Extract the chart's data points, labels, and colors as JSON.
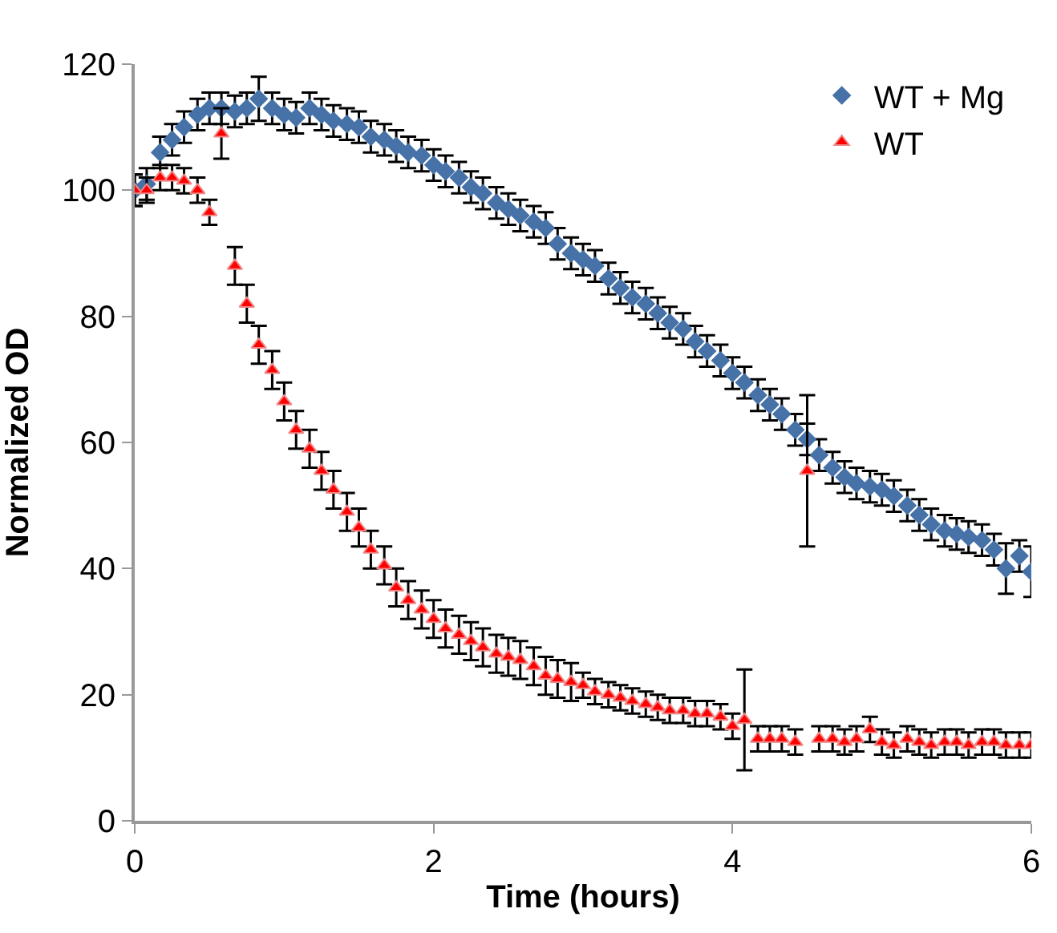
{
  "chart_data": {
    "type": "scatter",
    "xlabel": "Time (hours)",
    "ylabel": "Normalized OD",
    "x": [
      0,
      0.08,
      0.17,
      0.25,
      0.33,
      0.42,
      0.5,
      0.58,
      0.67,
      0.75,
      0.83,
      0.92,
      1,
      1.08,
      1.17,
      1.25,
      1.33,
      1.42,
      1.5,
      1.58,
      1.67,
      1.75,
      1.83,
      1.92,
      2,
      2.08,
      2.17,
      2.25,
      2.33,
      2.42,
      2.5,
      2.58,
      2.67,
      2.75,
      2.83,
      2.92,
      3,
      3.08,
      3.17,
      3.25,
      3.33,
      3.42,
      3.5,
      3.58,
      3.67,
      3.75,
      3.83,
      3.92,
      4,
      4.08,
      4.17,
      4.25,
      4.33,
      4.42,
      4.5,
      4.58,
      4.67,
      4.75,
      4.83,
      4.92,
      5,
      5.08,
      5.17,
      5.25,
      5.33,
      5.42,
      5.5,
      5.58,
      5.67,
      5.75,
      5.83,
      5.92,
      6
    ],
    "series": [
      {
        "name": "WT + Mg",
        "color": "#4672a8",
        "marker": "diamond",
        "values": [
          100,
          101,
          106,
          108,
          110,
          112,
          113,
          113,
          112.5,
          113,
          114.5,
          113,
          112,
          111.5,
          113,
          112,
          111,
          110.5,
          110,
          108.5,
          108,
          107,
          106,
          105.5,
          104,
          103,
          102,
          100.5,
          99.5,
          98,
          97,
          96,
          95,
          94,
          91.5,
          90,
          89,
          88,
          86,
          84.5,
          83,
          82,
          80.5,
          79,
          78,
          76,
          74.5,
          73,
          71,
          69.5,
          67.5,
          66,
          64.5,
          62,
          60.5,
          58,
          56,
          54.5,
          53.5,
          53,
          52.5,
          51.5,
          50,
          48.5,
          47,
          46,
          45.5,
          45,
          44.5,
          43,
          40,
          42,
          39.5
        ],
        "errors": [
          2.5,
          2.5,
          2.5,
          2.5,
          2.5,
          2.5,
          2.5,
          2.5,
          2.5,
          2.5,
          3.5,
          2.5,
          2.5,
          2.5,
          2.5,
          2.5,
          2.5,
          2.5,
          2.5,
          2.5,
          2.5,
          2.5,
          2.5,
          2.5,
          2.5,
          2.5,
          2.5,
          2.5,
          2.5,
          2.5,
          2.5,
          2.5,
          2.5,
          2.5,
          2.5,
          2.5,
          2.5,
          2.5,
          2.5,
          2.5,
          2.5,
          2.5,
          2.5,
          2.5,
          2.5,
          2.5,
          2.5,
          2.5,
          2.5,
          2.5,
          2.5,
          2.5,
          2.5,
          2.5,
          2.5,
          2.5,
          2.5,
          2.5,
          2.5,
          2.5,
          2.5,
          2.5,
          2.5,
          2.5,
          2.5,
          2.5,
          2.5,
          2.5,
          2.5,
          2.5,
          4,
          2.5,
          4
        ]
      },
      {
        "name": "WT",
        "color": "#ff0000",
        "marker": "triangle",
        "values": [
          100,
          100,
          102,
          102,
          101.5,
          100,
          96.5,
          109,
          88,
          82,
          75.5,
          71.5,
          66.5,
          62,
          59,
          55.5,
          52.5,
          49,
          46.5,
          43,
          40.5,
          37,
          35,
          33.5,
          32,
          30.5,
          29.5,
          28.5,
          27.5,
          26.5,
          26,
          25.5,
          24.5,
          23,
          22.5,
          22,
          21.5,
          20.5,
          20,
          19.5,
          19,
          18.5,
          18,
          17.5,
          17.5,
          17,
          17,
          16.5,
          15,
          16,
          13,
          13,
          13,
          12.5,
          55.5,
          13,
          13,
          12.5,
          13,
          14.5,
          12.5,
          12,
          13,
          12.5,
          12,
          12.5,
          12.5,
          12,
          12.5,
          12.5,
          12,
          12,
          12
        ],
        "errors": [
          2.5,
          2,
          2,
          2,
          2,
          2,
          2,
          4,
          3,
          3,
          3,
          3,
          3,
          3,
          3,
          3,
          3,
          3,
          3,
          3,
          3,
          3,
          3,
          3,
          3,
          3,
          3,
          3,
          3,
          3,
          3,
          3,
          3,
          3,
          3,
          3,
          2,
          2,
          2,
          2,
          2,
          2,
          2,
          2,
          2,
          2,
          2,
          2,
          2,
          8,
          2,
          2,
          2,
          2,
          12,
          2,
          2,
          2,
          2,
          2,
          2,
          2,
          2,
          2,
          2,
          2,
          2,
          2,
          2,
          2,
          2,
          2,
          2
        ]
      }
    ],
    "xlim": [
      0,
      6
    ],
    "xticks": [
      0,
      2,
      4,
      6
    ],
    "ylim": [
      0,
      120
    ],
    "yticks": [
      0,
      20,
      40,
      60,
      80,
      100,
      120
    ],
    "legend": "top right"
  }
}
